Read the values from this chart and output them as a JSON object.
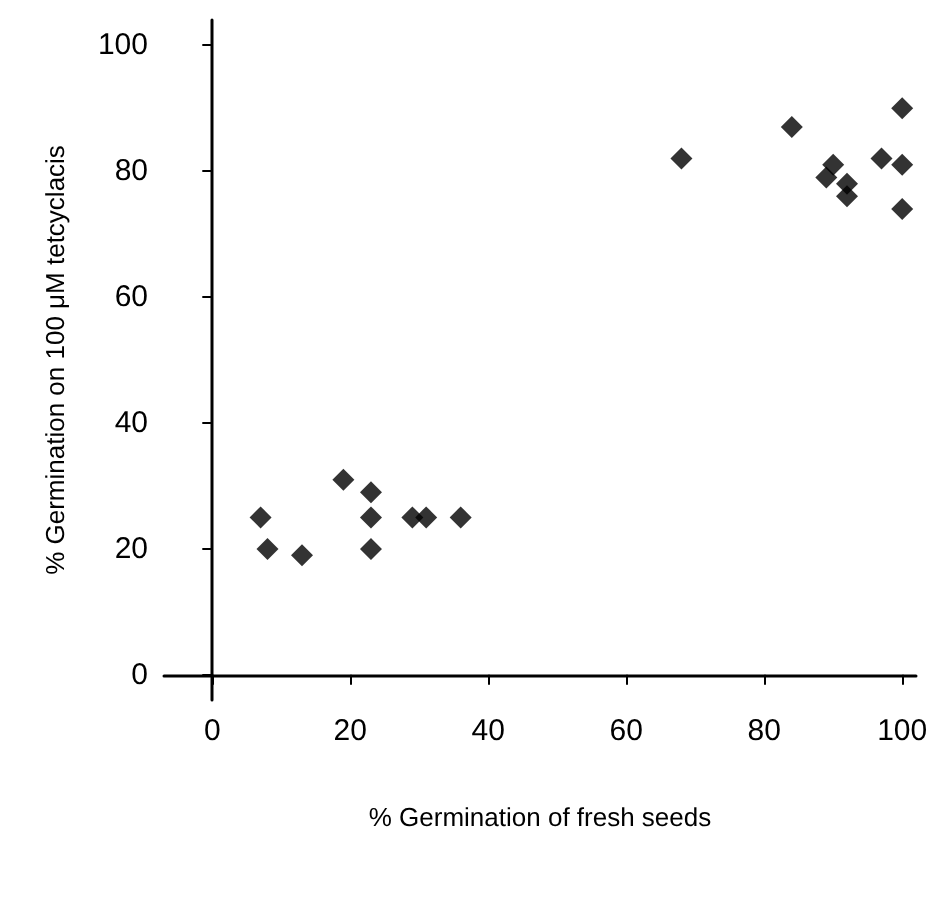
{
  "chart_data": {
    "type": "scatter",
    "xlabel": "% Germination of fresh seeds",
    "ylabel": "% Germination on 100 μM tetcyclacis",
    "x": [
      7,
      8,
      13,
      19,
      23,
      23,
      23,
      29,
      31,
      36,
      68,
      84,
      90,
      89,
      92,
      92,
      97,
      100,
      100,
      100
    ],
    "values": [
      25,
      20,
      19,
      31,
      29,
      25,
      20,
      25,
      25,
      25,
      82,
      87,
      81,
      79,
      78,
      76,
      82,
      81,
      90,
      74
    ],
    "color": "#000000",
    "marker": "diamond",
    "xlim": [
      -7,
      102
    ],
    "xticks": [
      0,
      20,
      40,
      60,
      80,
      100
    ],
    "ylim": [
      -4,
      104
    ],
    "yticks": [
      0,
      20,
      40,
      60,
      80,
      100
    ]
  }
}
